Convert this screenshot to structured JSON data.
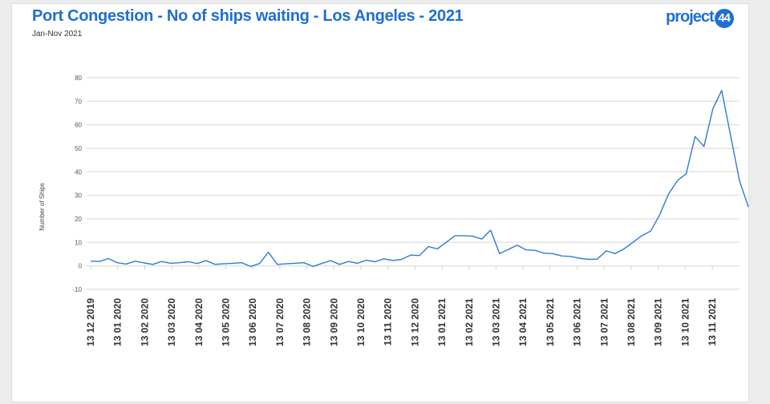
{
  "header": {
    "title": "Port Congestion - No of ships waiting - Los Angeles - 2021",
    "subtitle": "Jan-Nov 2021",
    "logo_text": "project",
    "logo_badge": "44"
  },
  "chart_data": {
    "type": "line",
    "title": "Port Congestion - No of ships waiting - Los Angeles - 2021",
    "subtitle": "Jan-Nov 2021",
    "xlabel": "",
    "ylabel": "Number of Ships",
    "ylim": [
      -10,
      80
    ],
    "yticks": [
      -10,
      0,
      10,
      20,
      30,
      40,
      50,
      60,
      70,
      80
    ],
    "xtick_labels": [
      "13 12 2019",
      "13 01 2020",
      "13 02 2020",
      "13 03 2020",
      "13 04 2020",
      "13 05 2020",
      "13 06 2020",
      "13 07 2020",
      "13 08 2020",
      "13 09 2020",
      "13 10 2020",
      "13 11 2020",
      "13 12 2020",
      "13 01 2021",
      "13 02 2021",
      "13 03 2021",
      "13 04 2021",
      "13 05 2021",
      "13 06 2021",
      "13 07 2021",
      "13 08 2021",
      "13 09 2021",
      "13 10 2021",
      "13 11 2021"
    ],
    "x_unit": "days since 13 12 2019 (10-day steps)",
    "x_range": [
      0,
      730
    ],
    "series": [
      {
        "name": "Ships waiting",
        "color": "#2f7ad6",
        "values": [
          2,
          2,
          3,
          1,
          1,
          2,
          1,
          1,
          2,
          1,
          1,
          2,
          1,
          2,
          1,
          1,
          1,
          1,
          0,
          1,
          5,
          1,
          1,
          1,
          1,
          0,
          1,
          2,
          1,
          2,
          1,
          2,
          2,
          3,
          2,
          4,
          5,
          4,
          7,
          8,
          10,
          12,
          14,
          13,
          11,
          14,
          6,
          7,
          8,
          8,
          7,
          5,
          4,
          5,
          4,
          3,
          4,
          3,
          6,
          4,
          8,
          10,
          12,
          16,
          22,
          30,
          35,
          40,
          55,
          50,
          68,
          75,
          55,
          35,
          25
        ]
      }
    ],
    "grid": true
  }
}
